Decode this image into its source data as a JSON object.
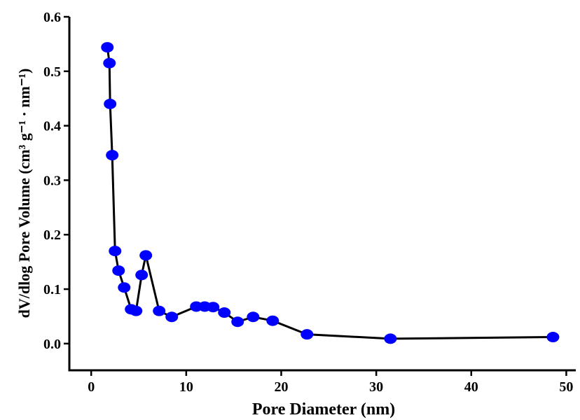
{
  "chart_data": {
    "type": "line",
    "xlabel": "Pore Diameter (nm)",
    "ylabel": "dV/dlog Pore Volume (cm³ g⁻¹ · nm⁻¹)",
    "x": [
      1.7,
      1.92,
      1.99,
      2.21,
      2.51,
      2.88,
      3.47,
      4.2,
      4.72,
      5.31,
      5.75,
      7.15,
      8.48,
      11.06,
      11.95,
      12.83,
      14.01,
      15.41,
      17.04,
      19.1,
      22.71,
      31.49,
      48.6
    ],
    "series": [
      {
        "name": "dV/dlog",
        "color": "#0000ff",
        "values": [
          0.544,
          0.515,
          0.44,
          0.346,
          0.17,
          0.134,
          0.103,
          0.063,
          0.06,
          0.126,
          0.162,
          0.06,
          0.049,
          0.068,
          0.068,
          0.067,
          0.057,
          0.04,
          0.049,
          0.042,
          0.017,
          0.009,
          0.012
        ]
      }
    ],
    "line_color": "#000000",
    "xlim": [
      -2.3,
      51
    ],
    "ylim": [
      -0.049,
      0.6
    ],
    "xticks": [
      0,
      10,
      20,
      30,
      40,
      50
    ],
    "yticks": [
      {
        "value": 0,
        "label": "0.0"
      },
      0.1,
      0.2,
      0.3,
      0.4,
      0.5,
      0.6
    ]
  }
}
